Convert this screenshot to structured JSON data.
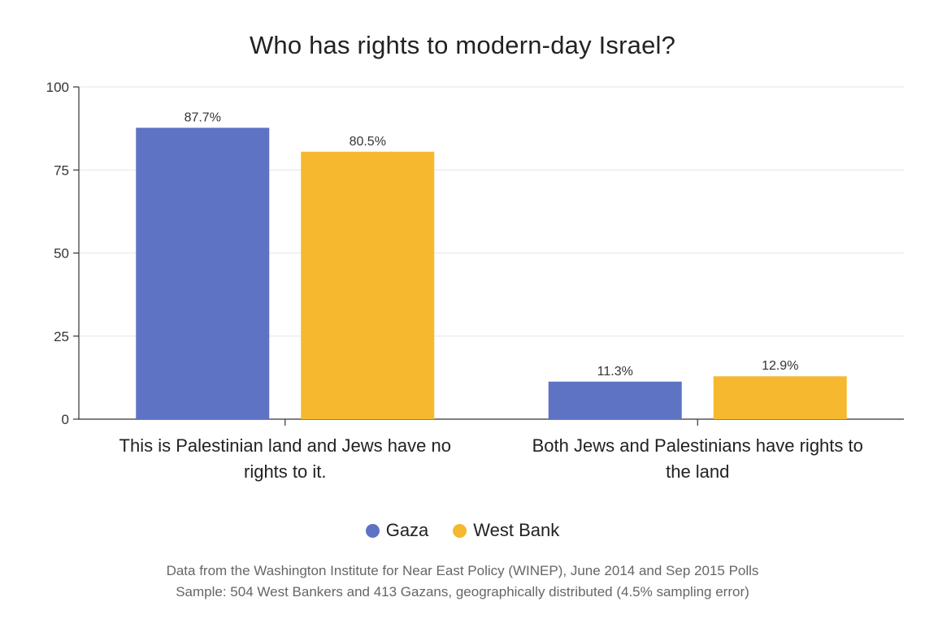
{
  "chart_data": {
    "type": "bar",
    "title": "Who has rights to modern-day Israel?",
    "categories": [
      [
        "This is Palestinian land and Jews have no",
        "rights to it."
      ],
      [
        "Both Jews and Palestinians have rights to",
        "the land"
      ]
    ],
    "series": [
      {
        "name": "Gaza",
        "color": "#5f73c4",
        "values": [
          87.7,
          11.3
        ],
        "labels": [
          "87.7%",
          "11.3%"
        ]
      },
      {
        "name": "West Bank",
        "color": "#f5b82e",
        "values": [
          80.5,
          12.9
        ],
        "labels": [
          "80.5%",
          "12.9%"
        ]
      }
    ],
    "ylim": [
      0,
      100
    ],
    "yticks": [
      0,
      25,
      50,
      75,
      100
    ],
    "grid": true,
    "legend": "bottom-center",
    "xlabel": "",
    "ylabel": ""
  },
  "footer": {
    "line1": "Data from the Washington Institute for Near East Policy (WINEP), June 2014 and Sep 2015 Polls",
    "line2": "Sample: 504 West Bankers and 413 Gazans, geographically distributed (4.5% sampling error)"
  }
}
